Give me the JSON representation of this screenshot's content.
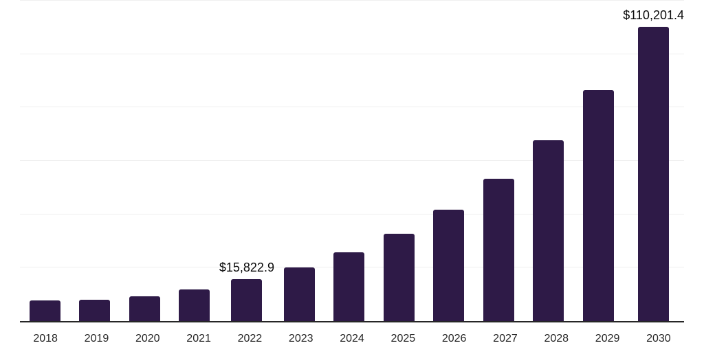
{
  "chart_data": {
    "type": "bar",
    "title": "",
    "xlabel": "",
    "ylabel": "",
    "categories": [
      "2018",
      "2019",
      "2020",
      "2021",
      "2022",
      "2023",
      "2024",
      "2025",
      "2026",
      "2027",
      "2028",
      "2029",
      "2030"
    ],
    "values": [
      7650,
      7950,
      9350,
      11900,
      15822.9,
      20167.5,
      25705.1,
      32763.1,
      41759.3,
      53225.5,
      67840.1,
      86467.3,
      110201.4
    ],
    "data_labels": [
      "",
      "",
      "",
      "",
      "$15,822.9",
      "",
      "",
      "",
      "",
      "",
      "",
      "",
      "$110,201.4"
    ],
    "ylim": [
      0,
      120000
    ],
    "gridline_step": 20000,
    "grid": true,
    "legend": false,
    "colors": {
      "bar": "#2E1A47",
      "axis": "#262626",
      "gridline": "#EFEFEF",
      "tick_label": "#262626",
      "data_label": "#0A0A0A",
      "background": "#FFFFFF"
    }
  }
}
